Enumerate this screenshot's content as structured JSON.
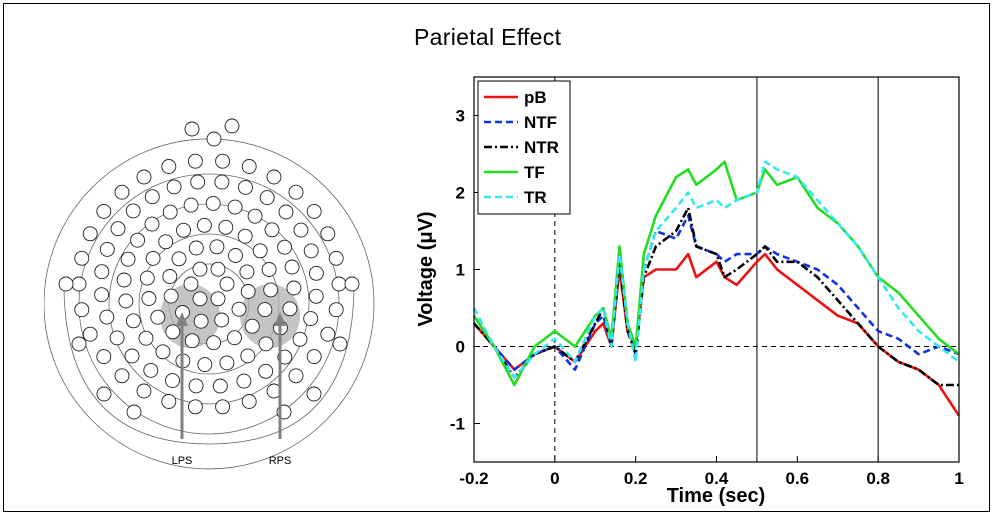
{
  "figure": {
    "title": "Parietal Effect"
  },
  "montage": {
    "left_label": "LPS",
    "right_label": "RPS",
    "highlight_color": "#b0b0b0"
  },
  "chart_data": {
    "type": "line",
    "xlabel": "Time (sec)",
    "ylabel": "Voltage (μV)",
    "xlim": [
      -0.2,
      1.0
    ],
    "ylim": [
      -1.5,
      3.5
    ],
    "x_ticks": [
      -0.2,
      0,
      0.2,
      0.4,
      0.6,
      0.8,
      1
    ],
    "x_tick_labels": [
      "-0.2",
      "0",
      "0.2",
      "0.4",
      "0.6",
      "0.8",
      "1"
    ],
    "y_ticks": [
      -1,
      0,
      1,
      2,
      3
    ],
    "y_tick_labels": [
      "-1",
      "0",
      "1",
      "2",
      "3"
    ],
    "grid": false,
    "legend_position": "top-left",
    "reference_lines": {
      "vertical_dashed": [
        0
      ],
      "horizontal_dashed": [
        0
      ],
      "vertical_solid": [
        0.5,
        0.8
      ]
    },
    "x": [
      -0.2,
      -0.15,
      -0.1,
      -0.05,
      0.0,
      0.05,
      0.1,
      0.12,
      0.14,
      0.16,
      0.18,
      0.2,
      0.22,
      0.25,
      0.3,
      0.33,
      0.35,
      0.4,
      0.42,
      0.45,
      0.5,
      0.52,
      0.55,
      0.6,
      0.65,
      0.7,
      0.75,
      0.8,
      0.85,
      0.9,
      0.95,
      1.0
    ],
    "series": [
      {
        "name": "pB",
        "color": "#ee1111",
        "dash": "solid",
        "values": [
          0.3,
          0.0,
          -0.3,
          -0.1,
          0.0,
          -0.2,
          0.2,
          0.3,
          0.0,
          1.0,
          0.2,
          0.0,
          0.9,
          1.0,
          1.0,
          1.2,
          0.9,
          1.1,
          0.9,
          0.8,
          1.1,
          1.2,
          1.0,
          0.8,
          0.6,
          0.4,
          0.3,
          0.0,
          -0.2,
          -0.3,
          -0.5,
          -0.9
        ]
      },
      {
        "name": "NTF",
        "color": "#1133dd",
        "dash": "dashed",
        "values": [
          0.4,
          0.0,
          -0.3,
          -0.1,
          0.0,
          -0.3,
          0.3,
          0.4,
          0.0,
          1.2,
          0.3,
          -0.1,
          1.0,
          1.5,
          1.4,
          1.7,
          1.3,
          1.2,
          1.1,
          1.2,
          1.2,
          1.3,
          1.2,
          1.1,
          1.0,
          0.8,
          0.5,
          0.2,
          0.1,
          -0.1,
          0.0,
          -0.1
        ]
      },
      {
        "name": "NTR",
        "color": "#000000",
        "dash": "dashdot",
        "values": [
          0.3,
          0.0,
          -0.4,
          -0.1,
          0.0,
          -0.2,
          0.3,
          0.5,
          0.0,
          1.1,
          0.2,
          -0.1,
          0.9,
          1.3,
          1.5,
          1.8,
          1.3,
          1.2,
          0.9,
          1.0,
          1.2,
          1.3,
          1.1,
          1.1,
          0.9,
          0.6,
          0.3,
          0.0,
          -0.2,
          -0.3,
          -0.5,
          -0.5
        ]
      },
      {
        "name": "TF",
        "color": "#22dd22",
        "dash": "solid",
        "values": [
          0.4,
          0.0,
          -0.5,
          0.0,
          0.2,
          0.0,
          0.4,
          0.5,
          0.1,
          1.3,
          0.3,
          0.0,
          1.2,
          1.7,
          2.2,
          2.3,
          2.1,
          2.3,
          2.4,
          1.9,
          2.0,
          2.3,
          2.1,
          2.2,
          1.8,
          1.6,
          1.3,
          0.9,
          0.7,
          0.4,
          0.1,
          -0.1
        ]
      },
      {
        "name": "TR",
        "color": "#33e8f0",
        "dash": "dashed",
        "values": [
          0.5,
          0.0,
          -0.4,
          -0.1,
          0.1,
          -0.2,
          0.4,
          0.5,
          0.0,
          1.2,
          0.3,
          -0.2,
          1.0,
          1.5,
          1.8,
          2.0,
          1.8,
          1.9,
          1.8,
          1.9,
          2.0,
          2.4,
          2.3,
          2.2,
          1.9,
          1.6,
          1.3,
          0.9,
          0.5,
          0.2,
          0.0,
          -0.2
        ]
      }
    ]
  }
}
